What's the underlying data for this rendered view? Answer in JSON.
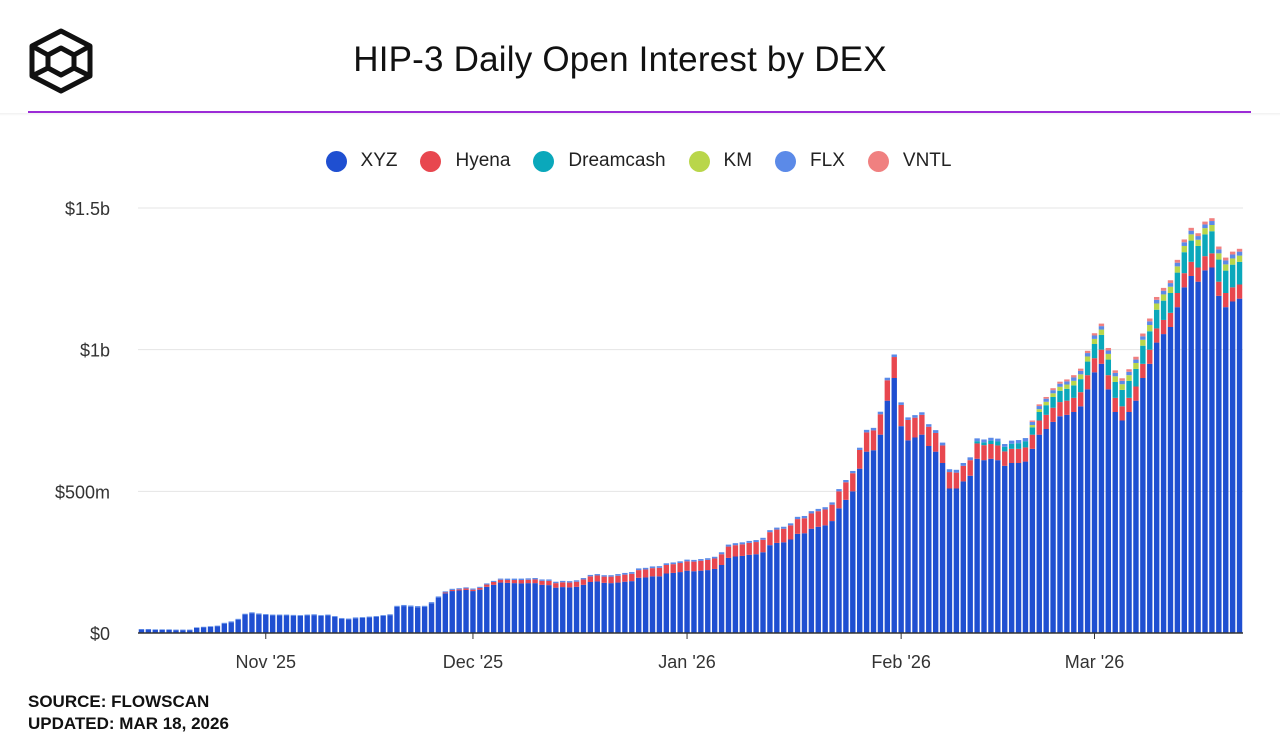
{
  "header": {
    "title": "HIP-3 Daily Open Interest by DEX",
    "logo_icon": "cube-logo-icon"
  },
  "footer": {
    "source": "SOURCE: FLOWSCAN",
    "updated": "UPDATED: MAR 18, 2026"
  },
  "chart_data": {
    "type": "bar",
    "stacked": true,
    "title": "HIP-3 Daily Open Interest by DEX",
    "xlabel": "",
    "ylabel": "",
    "ylim": [
      0,
      1500000000
    ],
    "y_ticks": [
      {
        "value": 0,
        "label": "$0"
      },
      {
        "value": 500000000,
        "label": "$500m"
      },
      {
        "value": 1000000000,
        "label": "$1b"
      },
      {
        "value": 1500000000,
        "label": "$1.5b"
      }
    ],
    "x_ticks": [
      {
        "index": 18,
        "label": "Nov '25"
      },
      {
        "index": 48,
        "label": "Dec '25"
      },
      {
        "index": 79,
        "label": "Jan '26"
      },
      {
        "index": 110,
        "label": "Feb '26"
      },
      {
        "index": 138,
        "label": "Mar '26"
      }
    ],
    "categories_range": {
      "start": "2025-10-14",
      "end": "2026-03-18"
    },
    "grid": true,
    "legend_position": "top",
    "series": [
      {
        "name": "XYZ",
        "color": "#1f4fd1",
        "values": [
          12,
          12,
          11,
          11,
          11,
          10,
          10,
          10,
          18,
          20,
          22,
          24,
          33,
          38,
          47,
          65,
          70,
          66,
          64,
          62,
          62,
          62,
          61,
          60,
          62,
          63,
          60,
          62,
          57,
          50,
          48,
          52,
          53,
          55,
          57,
          60,
          63,
          92,
          95,
          93,
          91,
          92,
          105,
          125,
          140,
          148,
          150,
          152,
          148,
          153,
          163,
          170,
          178,
          177,
          176,
          175,
          176,
          176,
          170,
          169,
          160,
          162,
          161,
          163,
          170,
          180,
          182,
          177,
          176,
          178,
          181,
          183,
          195,
          196,
          200,
          200,
          210,
          212,
          215,
          220,
          218,
          220,
          222,
          226,
          240,
          265,
          270,
          272,
          276,
          278,
          285,
          310,
          318,
          320,
          330,
          350,
          352,
          368,
          375,
          380,
          395,
          440,
          470,
          500,
          580,
          640,
          645,
          700,
          820,
          900,
          730,
          680,
          690,
          700,
          660,
          640,
          600,
          510,
          510,
          535,
          555,
          615,
          610,
          615,
          610,
          590,
          600,
          600,
          605,
          650,
          700,
          720,
          745,
          765,
          770,
          780,
          800,
          860,
          920,
          950,
          860,
          780,
          750,
          780,
          820,
          900,
          950,
          1025,
          1055,
          1080,
          1150,
          1220,
          1260,
          1240,
          1280,
          1290,
          1190,
          1150,
          1170,
          1180
        ]
      },
      {
        "name": "Hyena",
        "color": "#e8474f",
        "values": [
          0,
          0,
          0,
          0,
          0,
          0,
          0,
          0,
          0,
          0,
          0,
          0,
          0,
          0,
          0,
          0,
          0,
          0,
          0,
          0,
          0,
          0,
          0,
          0,
          0,
          0,
          0,
          0,
          0,
          0,
          0,
          0,
          0,
          0,
          0,
          0,
          0,
          0,
          0,
          0,
          0,
          0,
          0,
          0,
          3,
          4,
          4,
          5,
          5,
          6,
          8,
          10,
          10,
          10,
          11,
          12,
          12,
          13,
          14,
          15,
          16,
          17,
          17,
          18,
          19,
          20,
          21,
          22,
          23,
          24,
          25,
          26,
          27,
          28,
          29,
          30,
          30,
          31,
          32,
          33,
          34,
          35,
          36,
          37,
          38,
          40,
          40,
          41,
          42,
          43,
          44,
          46,
          47,
          48,
          50,
          52,
          53,
          54,
          55,
          56,
          58,
          60,
          62,
          64,
          66,
          68,
          70,
          72,
          72,
          74,
          75,
          72,
          70,
          70,
          68,
          66,
          62,
          58,
          56,
          55,
          55,
          54,
          53,
          52,
          52,
          51,
          50,
          50,
          50,
          50,
          50,
          50,
          50,
          50,
          50,
          50,
          50,
          50,
          50,
          50,
          50,
          50,
          50,
          50,
          50,
          50,
          50,
          50,
          50,
          50,
          50,
          50,
          50,
          50,
          50,
          50,
          50,
          50,
          50,
          50
        ]
      },
      {
        "name": "Dreamcash",
        "color": "#0aa8bb",
        "values": [
          0,
          0,
          0,
          0,
          0,
          0,
          0,
          0,
          0,
          0,
          0,
          0,
          0,
          0,
          0,
          0,
          0,
          0,
          0,
          0,
          0,
          0,
          0,
          0,
          0,
          0,
          0,
          0,
          0,
          0,
          0,
          0,
          0,
          0,
          0,
          0,
          0,
          0,
          0,
          0,
          0,
          0,
          0,
          0,
          0,
          0,
          0,
          0,
          0,
          0,
          0,
          0,
          0,
          0,
          0,
          0,
          0,
          0,
          0,
          0,
          0,
          0,
          0,
          0,
          0,
          0,
          0,
          0,
          0,
          0,
          0,
          0,
          0,
          0,
          0,
          0,
          0,
          0,
          0,
          0,
          0,
          0,
          0,
          0,
          0,
          0,
          0,
          0,
          0,
          0,
          0,
          0,
          0,
          0,
          0,
          0,
          0,
          0,
          0,
          0,
          0,
          0,
          0,
          0,
          0,
          0,
          0,
          0,
          0,
          0,
          0,
          0,
          0,
          0,
          0,
          0,
          0,
          0,
          0,
          0,
          0,
          8,
          10,
          12,
          14,
          16,
          18,
          20,
          22,
          26,
          30,
          34,
          38,
          40,
          42,
          44,
          46,
          48,
          50,
          52,
          55,
          56,
          58,
          60,
          62,
          64,
          65,
          66,
          68,
          70,
          72,
          74,
          75,
          76,
          77,
          78,
          78,
          79,
          80,
          80
        ]
      },
      {
        "name": "KM",
        "color": "#b9d64a",
        "values": [
          0,
          0,
          0,
          0,
          0,
          0,
          0,
          0,
          0,
          0,
          0,
          0,
          0,
          0,
          0,
          0,
          0,
          0,
          0,
          0,
          0,
          0,
          0,
          0,
          0,
          0,
          0,
          0,
          0,
          0,
          0,
          0,
          0,
          0,
          0,
          0,
          0,
          0,
          0,
          0,
          0,
          0,
          0,
          0,
          0,
          0,
          0,
          0,
          0,
          0,
          0,
          0,
          0,
          0,
          0,
          0,
          0,
          0,
          0,
          0,
          0,
          0,
          0,
          0,
          0,
          0,
          0,
          0,
          0,
          0,
          0,
          0,
          0,
          0,
          0,
          0,
          0,
          0,
          0,
          0,
          0,
          0,
          0,
          0,
          0,
          0,
          0,
          0,
          0,
          0,
          0,
          0,
          0,
          0,
          0,
          0,
          0,
          0,
          0,
          0,
          0,
          0,
          0,
          0,
          0,
          0,
          0,
          0,
          0,
          0,
          0,
          0,
          0,
          0,
          0,
          0,
          0,
          0,
          0,
          0,
          0,
          0,
          0,
          0,
          0,
          0,
          0,
          0,
          0,
          8,
          10,
          12,
          13,
          14,
          15,
          16,
          17,
          18,
          18,
          19,
          20,
          20,
          20,
          20,
          21,
          21,
          22,
          22,
          22,
          22,
          22,
          22,
          22,
          22,
          22,
          22,
          22,
          22,
          22,
          22
        ]
      },
      {
        "name": "FLX",
        "color": "#5b8ae8",
        "values": [
          2,
          2,
          2,
          2,
          2,
          2,
          2,
          2,
          2,
          2,
          2,
          2,
          3,
          3,
          3,
          3,
          3,
          3,
          3,
          3,
          3,
          3,
          3,
          3,
          3,
          3,
          3,
          3,
          3,
          3,
          3,
          3,
          3,
          3,
          3,
          3,
          3,
          4,
          4,
          4,
          4,
          4,
          4,
          4,
          4,
          4,
          4,
          4,
          4,
          4,
          4,
          4,
          4,
          5,
          5,
          5,
          5,
          5,
          5,
          5,
          5,
          5,
          5,
          5,
          5,
          5,
          5,
          5,
          5,
          6,
          6,
          6,
          6,
          6,
          6,
          6,
          6,
          6,
          6,
          6,
          6,
          6,
          6,
          6,
          7,
          7,
          7,
          7,
          7,
          7,
          7,
          7,
          7,
          7,
          7,
          8,
          8,
          8,
          8,
          8,
          8,
          8,
          8,
          8,
          8,
          9,
          9,
          9,
          9,
          9,
          9,
          9,
          9,
          9,
          9,
          10,
          10,
          10,
          10,
          10,
          10,
          10,
          10,
          10,
          10,
          10,
          11,
          11,
          11,
          11,
          11,
          11,
          11,
          11,
          11,
          12,
          12,
          12,
          12,
          12,
          12,
          12,
          12,
          12,
          12,
          12,
          13,
          13,
          13,
          13,
          13,
          13,
          13,
          13,
          13,
          14,
          14,
          14,
          14,
          14
        ]
      },
      {
        "name": "VNTL",
        "color": "#f08080",
        "values": [
          0,
          0,
          0,
          0,
          0,
          0,
          0,
          0,
          0,
          0,
          0,
          0,
          0,
          0,
          0,
          0,
          0,
          0,
          0,
          0,
          0,
          0,
          0,
          0,
          0,
          0,
          0,
          0,
          0,
          0,
          0,
          0,
          0,
          0,
          0,
          0,
          0,
          0,
          0,
          0,
          0,
          0,
          0,
          0,
          0,
          0,
          0,
          0,
          0,
          0,
          0,
          0,
          0,
          0,
          0,
          0,
          0,
          0,
          0,
          0,
          0,
          0,
          0,
          0,
          0,
          0,
          0,
          0,
          0,
          0,
          0,
          0,
          0,
          0,
          0,
          0,
          0,
          0,
          0,
          0,
          0,
          0,
          0,
          0,
          0,
          0,
          0,
          0,
          0,
          0,
          0,
          0,
          0,
          0,
          0,
          0,
          0,
          0,
          0,
          0,
          0,
          0,
          0,
          0,
          0,
          0,
          0,
          0,
          0,
          0,
          0,
          0,
          0,
          0,
          0,
          0,
          0,
          0,
          0,
          0,
          0,
          0,
          0,
          0,
          0,
          0,
          0,
          0,
          0,
          5,
          6,
          6,
          7,
          7,
          7,
          8,
          8,
          8,
          8,
          9,
          9,
          9,
          9,
          9,
          10,
          10,
          10,
          10,
          10,
          10,
          10,
          10,
          10,
          10,
          10,
          10,
          10,
          10,
          10,
          10
        ]
      }
    ],
    "value_unit": "millions USD"
  }
}
